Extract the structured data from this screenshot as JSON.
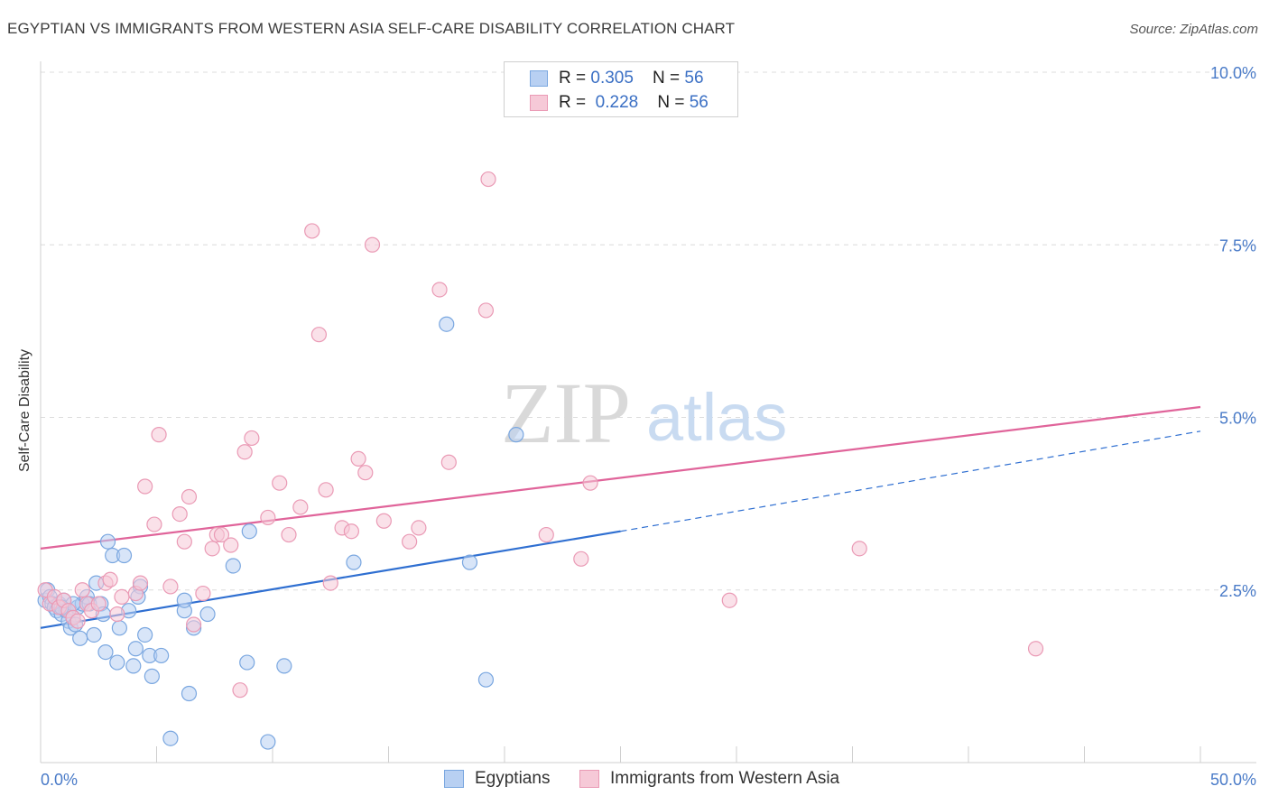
{
  "chart_data": {
    "type": "scatter",
    "title": "EGYPTIAN VS IMMIGRANTS FROM WESTERN ASIA SELF-CARE DISABILITY CORRELATION CHART",
    "source": "Source: ZipAtlas.com",
    "ylabel": "Self-Care Disability",
    "xlim": [
      0,
      50
    ],
    "ylim": [
      0,
      10
    ],
    "x_tick_labels": [
      {
        "value": 0,
        "label": "0.0%"
      },
      {
        "value": 50,
        "label": "50.0%"
      }
    ],
    "y_tick_labels": [
      {
        "value": 2.5,
        "label": "2.5%"
      },
      {
        "value": 5.0,
        "label": "5.0%"
      },
      {
        "value": 7.5,
        "label": "7.5%"
      },
      {
        "value": 10.0,
        "label": "10.0%"
      }
    ],
    "watermark": {
      "zip": "ZIP",
      "atlas": "atlas"
    },
    "series": [
      {
        "name": "Egyptians",
        "color": "#7aa7e0",
        "fill": "#b8d0f2",
        "line_color": "#2f6fd1",
        "r": "0.305",
        "n": "56",
        "trend": {
          "x0": 0,
          "y0": 1.95,
          "x1": 25,
          "y1": 3.35,
          "dash_x1": 50,
          "dash_y1": 4.8
        },
        "points": [
          [
            0.2,
            2.35
          ],
          [
            0.3,
            2.5
          ],
          [
            0.4,
            2.4
          ],
          [
            0.5,
            2.3
          ],
          [
            0.6,
            2.25
          ],
          [
            0.7,
            2.2
          ],
          [
            0.8,
            2.3
          ],
          [
            0.9,
            2.15
          ],
          [
            1.0,
            2.35
          ],
          [
            1.1,
            2.2
          ],
          [
            1.2,
            2.05
          ],
          [
            1.3,
            1.95
          ],
          [
            1.4,
            2.1
          ],
          [
            1.5,
            2.0
          ],
          [
            1.6,
            2.25
          ],
          [
            1.7,
            1.8
          ],
          [
            1.8,
            2.3
          ],
          [
            2.0,
            2.4
          ],
          [
            2.1,
            2.3
          ],
          [
            2.3,
            1.85
          ],
          [
            2.4,
            2.6
          ],
          [
            2.6,
            2.3
          ],
          [
            2.8,
            1.6
          ],
          [
            2.9,
            3.2
          ],
          [
            3.1,
            3.0
          ],
          [
            3.3,
            1.45
          ],
          [
            3.4,
            1.95
          ],
          [
            3.6,
            3.0
          ],
          [
            3.8,
            2.2
          ],
          [
            4.0,
            1.4
          ],
          [
            4.1,
            1.65
          ],
          [
            4.3,
            2.55
          ],
          [
            4.5,
            1.85
          ],
          [
            4.7,
            1.55
          ],
          [
            4.8,
            1.25
          ],
          [
            5.2,
            1.55
          ],
          [
            5.6,
            0.35
          ],
          [
            6.2,
            2.2
          ],
          [
            6.4,
            1.0
          ],
          [
            6.6,
            1.95
          ],
          [
            7.2,
            2.15
          ],
          [
            8.3,
            2.85
          ],
          [
            8.9,
            1.45
          ],
          [
            9.0,
            3.35
          ],
          [
            9.8,
            0.3
          ],
          [
            10.5,
            1.4
          ],
          [
            13.5,
            2.9
          ],
          [
            17.5,
            6.35
          ],
          [
            18.5,
            2.9
          ],
          [
            19.2,
            1.2
          ],
          [
            20.5,
            4.75
          ],
          [
            6.2,
            2.35
          ],
          [
            4.2,
            2.4
          ],
          [
            2.7,
            2.15
          ],
          [
            1.4,
            2.3
          ],
          [
            0.9,
            2.25
          ]
        ]
      },
      {
        "name": "Immigrants from Western Asia",
        "color": "#ea9ab5",
        "fill": "#f6c9d7",
        "line_color": "#e0649a",
        "r": "0.228",
        "n": "56",
        "trend": {
          "x0": 0,
          "y0": 3.1,
          "x1": 50,
          "y1": 5.15
        },
        "points": [
          [
            0.2,
            2.5
          ],
          [
            0.4,
            2.3
          ],
          [
            0.6,
            2.4
          ],
          [
            0.8,
            2.25
          ],
          [
            1.0,
            2.35
          ],
          [
            1.2,
            2.2
          ],
          [
            1.4,
            2.1
          ],
          [
            1.6,
            2.05
          ],
          [
            1.8,
            2.5
          ],
          [
            2.0,
            2.3
          ],
          [
            2.2,
            2.2
          ],
          [
            2.5,
            2.3
          ],
          [
            2.8,
            2.6
          ],
          [
            3.0,
            2.65
          ],
          [
            3.3,
            2.15
          ],
          [
            3.5,
            2.4
          ],
          [
            4.1,
            2.45
          ],
          [
            4.3,
            2.6
          ],
          [
            4.5,
            4.0
          ],
          [
            4.9,
            3.45
          ],
          [
            5.1,
            4.75
          ],
          [
            5.6,
            2.55
          ],
          [
            6.0,
            3.6
          ],
          [
            6.2,
            3.2
          ],
          [
            6.4,
            3.85
          ],
          [
            6.6,
            2.0
          ],
          [
            7.0,
            2.45
          ],
          [
            7.4,
            3.1
          ],
          [
            7.6,
            3.3
          ],
          [
            7.8,
            3.3
          ],
          [
            8.2,
            3.15
          ],
          [
            8.6,
            1.05
          ],
          [
            8.8,
            4.5
          ],
          [
            9.1,
            4.7
          ],
          [
            9.8,
            3.55
          ],
          [
            10.3,
            4.05
          ],
          [
            10.7,
            3.3
          ],
          [
            11.2,
            3.7
          ],
          [
            11.7,
            7.7
          ],
          [
            12.0,
            6.2
          ],
          [
            12.3,
            3.95
          ],
          [
            12.5,
            2.6
          ],
          [
            13.0,
            3.4
          ],
          [
            13.4,
            3.35
          ],
          [
            13.7,
            4.4
          ],
          [
            14.0,
            4.2
          ],
          [
            14.3,
            7.5
          ],
          [
            14.8,
            3.5
          ],
          [
            15.9,
            3.2
          ],
          [
            16.3,
            3.4
          ],
          [
            17.2,
            6.85
          ],
          [
            17.6,
            4.35
          ],
          [
            19.2,
            6.55
          ],
          [
            19.3,
            8.45
          ],
          [
            21.8,
            3.3
          ],
          [
            23.3,
            2.95
          ]
        ],
        "extra_points": [
          [
            23.7,
            4.05
          ],
          [
            29.7,
            2.35
          ],
          [
            35.3,
            3.1
          ],
          [
            42.9,
            1.65
          ]
        ]
      }
    ]
  }
}
